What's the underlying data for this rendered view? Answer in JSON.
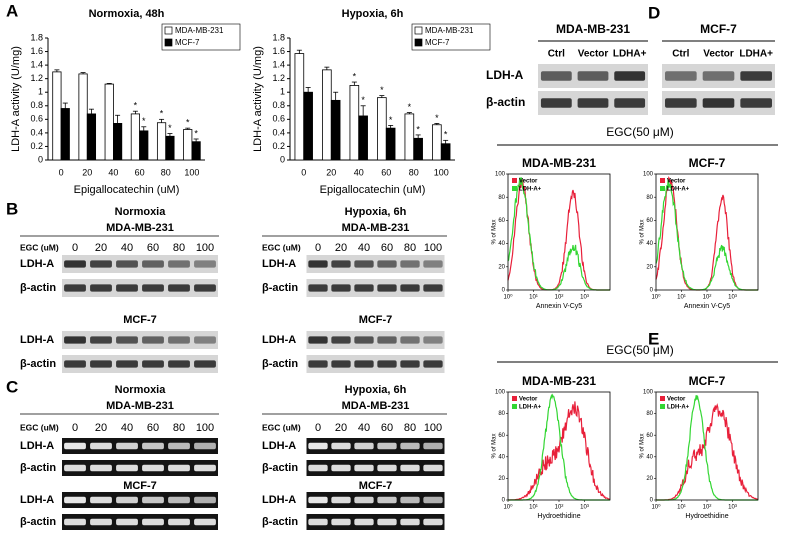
{
  "panel_labels": [
    "A",
    "B",
    "C",
    "D",
    "E"
  ],
  "chart_data": [
    {
      "type": "bar",
      "title": "Normoxia, 48h",
      "x_label": "Epigallocatechin (uM)",
      "y_label": "LDH-A activity (U/mg)",
      "categories": [
        "0",
        "20",
        "40",
        "60",
        "80",
        "100"
      ],
      "series": [
        {
          "name": "MDA-MB-231",
          "color": "#ffffff",
          "values": [
            1.3,
            1.27,
            1.12,
            0.68,
            0.55,
            0.45
          ],
          "errors": [
            0.03,
            0.02,
            0.01,
            0.04,
            0.05,
            0.02
          ],
          "significance": [
            null,
            null,
            null,
            "*",
            "*",
            "*"
          ]
        },
        {
          "name": "MCF-7",
          "color": "#000000",
          "values": [
            0.76,
            0.68,
            0.54,
            0.43,
            0.35,
            0.27
          ],
          "errors": [
            0.08,
            0.07,
            0.12,
            0.06,
            0.04,
            0.04
          ],
          "significance": [
            null,
            null,
            null,
            "*",
            "*",
            "*"
          ]
        }
      ],
      "ylim": [
        0,
        1.8
      ],
      "yticks": [
        0,
        0.2,
        0.4,
        0.6,
        0.8,
        1,
        1.2,
        1.4,
        1.6,
        1.8
      ],
      "legend": "upper right"
    },
    {
      "type": "bar",
      "title": "Hypoxia, 6h",
      "x_label": "Epigallocatechin (uM)",
      "y_label": "LDH-A activity (U/mg)",
      "categories": [
        "0",
        "20",
        "40",
        "60",
        "80",
        "100"
      ],
      "series": [
        {
          "name": "MDA-MB-231",
          "color": "#ffffff",
          "values": [
            1.57,
            1.33,
            1.1,
            0.92,
            0.68,
            0.52
          ],
          "errors": [
            0.05,
            0.04,
            0.05,
            0.03,
            0.02,
            0.02
          ],
          "significance": [
            null,
            null,
            "*",
            "*",
            "*",
            "*"
          ]
        },
        {
          "name": "MCF-7",
          "color": "#000000",
          "values": [
            1.0,
            0.88,
            0.65,
            0.47,
            0.32,
            0.24
          ],
          "errors": [
            0.07,
            0.12,
            0.15,
            0.04,
            0.05,
            0.05
          ],
          "significance": [
            null,
            null,
            "*",
            "*",
            "*",
            "*"
          ]
        }
      ],
      "ylim": [
        0,
        1.8
      ],
      "yticks": [
        0,
        0.2,
        0.4,
        0.6,
        0.8,
        1,
        1.2,
        1.4,
        1.6,
        1.8
      ],
      "legend": "upper right"
    }
  ],
  "panel_B": {
    "blots": [
      {
        "condition": "Normoxia",
        "cell_line": "MDA-MB-231",
        "dose_label": "EGC (uM)",
        "doses": [
          0,
          20,
          40,
          60,
          80,
          100
        ],
        "rows": [
          "LDH-A",
          "β-actin"
        ],
        "second_cell_line": "MCF-7",
        "second_rows": [
          "LDH-A",
          "β-actin"
        ]
      },
      {
        "condition": "Hypoxia, 6h",
        "cell_line": "MDA-MB-231",
        "dose_label": "EGC (uM)",
        "doses": [
          0,
          20,
          40,
          60,
          80,
          100
        ],
        "rows": [
          "LDH-A",
          "β-actin"
        ],
        "second_cell_line": "MCF-7",
        "second_rows": [
          "LDH-A",
          "β-actin"
        ]
      }
    ]
  },
  "panel_C": {
    "blots": [
      {
        "condition": "Normoxia",
        "cell_line": "MDA-MB-231",
        "dose_label": "EGC (uM)",
        "doses": [
          0,
          20,
          40,
          60,
          80,
          100
        ],
        "rows": [
          "LDH-A",
          "β-actin"
        ],
        "second_cell_line": "MCF-7",
        "second_rows": [
          "LDH-A",
          "β-actin"
        ]
      },
      {
        "condition": "Hypoxia, 6h",
        "cell_line": "MDA-MB-231",
        "dose_label": "EGC (uM)",
        "doses": [
          0,
          20,
          40,
          60,
          80,
          100
        ],
        "rows": [
          "LDH-A",
          "β-actin"
        ],
        "second_cell_line": "MCF-7",
        "second_rows": [
          "LDH-A",
          "β-actin"
        ]
      }
    ]
  },
  "panel_D": {
    "groups": [
      {
        "cell_line": "MDA-MB-231",
        "lanes": [
          "Ctrl",
          "Vector",
          "LDHA+"
        ]
      },
      {
        "cell_line": "MCF-7",
        "lanes": [
          "Ctrl",
          "Vector",
          "LDHA+"
        ]
      }
    ],
    "rows": [
      "LDH-A",
      "β-actin"
    ],
    "treatment": "EGC(50 μM)",
    "plots": [
      "MDA-MB-231",
      "MCF-7"
    ],
    "legend": [
      {
        "name": "Vector",
        "color": "#e8203a"
      },
      {
        "name": "LDH-A+",
        "color": "#33d633"
      }
    ],
    "y_label": "% of Max",
    "x_label": "Annexin V-Cy5",
    "xlim": [
      1,
      10000
    ],
    "xticks": [
      {
        "value": 1,
        "label": "10⁰"
      },
      {
        "value": 10,
        "label": "10¹"
      },
      {
        "value": 100,
        "label": "10²"
      },
      {
        "value": 1000,
        "label": "10³"
      }
    ],
    "ylim": [
      0,
      100
    ],
    "yticks": [
      0,
      20,
      40,
      60,
      80,
      100
    ]
  },
  "panel_E": {
    "treatment": "EGC(50 μM)",
    "plots": [
      "MDA-MB-231",
      "MCF-7"
    ],
    "legend": [
      {
        "name": "Vector",
        "color": "#e8203a"
      },
      {
        "name": "LDH-A+",
        "color": "#33d633"
      }
    ],
    "y_label": "% of Max",
    "x_label": "Hydroethidine",
    "xlim": [
      1,
      10000
    ],
    "xticks": [
      {
        "value": 1,
        "label": "10⁰"
      },
      {
        "value": 10,
        "label": "10¹"
      },
      {
        "value": 100,
        "label": "10²"
      },
      {
        "value": 1000,
        "label": "10³"
      }
    ],
    "ylim": [
      0,
      100
    ],
    "yticks": [
      0,
      20,
      40,
      60,
      80,
      100
    ]
  }
}
